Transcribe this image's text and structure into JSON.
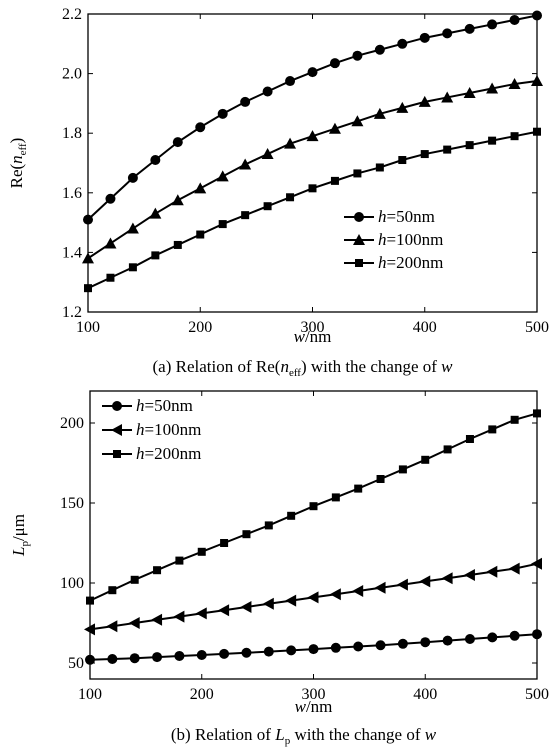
{
  "chart_data": [
    {
      "type": "line",
      "caption_pre": "(a) Relation of",
      "caption_mid": "Re(",
      "caption_var": "n",
      "caption_sub": "eff",
      "caption_close": ")",
      "caption_post": "with the change of",
      "caption_end": "w",
      "ylabel_pre": "Re(",
      "ylabel_var": "n",
      "ylabel_sub": "eff",
      "ylabel_post": ")",
      "xlabel_var": "w",
      "xlabel_unit": "/nm",
      "xlim": [
        100,
        500
      ],
      "ylim": [
        1.2,
        2.2
      ],
      "xticks": [
        100,
        200,
        300,
        400,
        500
      ],
      "yticks": [
        "1.2",
        "1.4",
        "1.6",
        "1.8",
        "2.0",
        "2.2"
      ],
      "legend_position": "right-lower",
      "x": [
        100,
        120,
        140,
        160,
        180,
        200,
        220,
        240,
        260,
        280,
        300,
        320,
        340,
        360,
        380,
        400,
        420,
        440,
        460,
        480,
        500
      ],
      "series": [
        {
          "name": "h=50nm",
          "label_var": "h",
          "label_val": "=50nm",
          "marker": "circle",
          "values": [
            1.51,
            1.58,
            1.65,
            1.71,
            1.77,
            1.82,
            1.865,
            1.905,
            1.94,
            1.975,
            2.005,
            2.035,
            2.06,
            2.08,
            2.1,
            2.12,
            2.135,
            2.15,
            2.165,
            2.18,
            2.195
          ]
        },
        {
          "name": "h=100nm",
          "label_var": "h",
          "label_val": "=100nm",
          "marker": "triangle-up",
          "values": [
            1.38,
            1.43,
            1.48,
            1.53,
            1.575,
            1.615,
            1.655,
            1.695,
            1.73,
            1.765,
            1.79,
            1.815,
            1.84,
            1.865,
            1.885,
            1.905,
            1.92,
            1.935,
            1.95,
            1.965,
            1.975
          ]
        },
        {
          "name": "h=200nm",
          "label_var": "h",
          "label_val": "=200nm",
          "marker": "square",
          "values": [
            1.28,
            1.315,
            1.35,
            1.39,
            1.425,
            1.46,
            1.495,
            1.525,
            1.555,
            1.585,
            1.615,
            1.64,
            1.665,
            1.685,
            1.71,
            1.73,
            1.745,
            1.76,
            1.775,
            1.79,
            1.805
          ]
        }
      ]
    },
    {
      "type": "line",
      "caption_pre": "(b) Relation of",
      "caption_mid": "",
      "caption_var": "L",
      "caption_sub": "p",
      "caption_close": "",
      "caption_post": "with the change of",
      "caption_end": "w",
      "ylabel_pre": "",
      "ylabel_var": "L",
      "ylabel_sub": "p",
      "ylabel_post": "/μm",
      "xlabel_var": "w",
      "xlabel_unit": "/nm",
      "xlim": [
        100,
        500
      ],
      "ylim": [
        40,
        220
      ],
      "xticks": [
        100,
        200,
        300,
        400,
        500
      ],
      "yticks": [
        "50",
        "100",
        "150",
        "200"
      ],
      "legend_position": "top-left",
      "x": [
        100,
        120,
        140,
        160,
        180,
        200,
        220,
        240,
        260,
        280,
        300,
        320,
        340,
        360,
        380,
        400,
        420,
        440,
        460,
        480,
        500
      ],
      "series": [
        {
          "name": "h=50nm",
          "label_var": "h",
          "label_val": "=50nm",
          "marker": "circle",
          "values": [
            52,
            52.5,
            53,
            53.7,
            54.4,
            55,
            55.7,
            56.4,
            57.1,
            57.9,
            58.7,
            59.5,
            60.3,
            61.1,
            62,
            63,
            64,
            65,
            66,
            67,
            68
          ]
        },
        {
          "name": "h=100nm",
          "label_var": "h",
          "label_val": "=100nm",
          "marker": "triangle-left",
          "values": [
            71,
            73,
            75,
            77,
            79,
            81,
            83,
            85,
            87,
            89,
            91,
            93,
            95,
            97,
            99,
            101,
            103,
            105,
            107,
            109,
            112
          ]
        },
        {
          "name": "h=200nm",
          "label_var": "h",
          "label_val": "=200nm",
          "marker": "square",
          "values": [
            89,
            95.5,
            102,
            108,
            114,
            119.5,
            125,
            130.5,
            136,
            142,
            148,
            153.5,
            159,
            165,
            171,
            177,
            183.5,
            190,
            196,
            202,
            206
          ]
        }
      ]
    }
  ]
}
